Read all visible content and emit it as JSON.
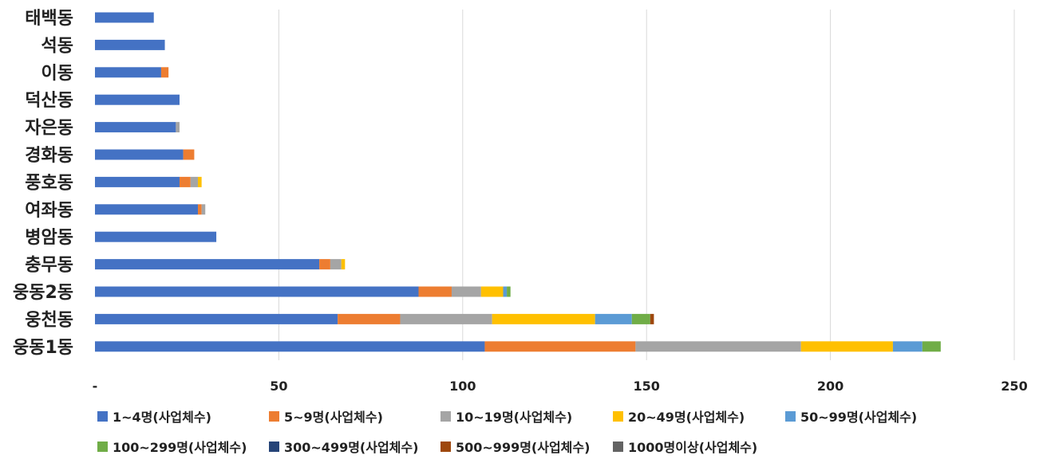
{
  "chart_data": {
    "type": "bar",
    "orientation": "horizontal",
    "stacked": true,
    "categories": [
      "태백동",
      "석동",
      "이동",
      "덕산동",
      "자은동",
      "경화동",
      "풍호동",
      "여좌동",
      "병암동",
      "충무동",
      "웅동2동",
      "웅천동",
      "웅동1동"
    ],
    "series": [
      {
        "name": "1~4명(사업체수)",
        "color": "#4472C4",
        "values": [
          16,
          19,
          18,
          23,
          22,
          24,
          23,
          28,
          33,
          61,
          88,
          66,
          106
        ]
      },
      {
        "name": "5~9명(사업체수)",
        "color": "#ED7D31",
        "values": [
          0,
          0,
          2,
          0,
          0,
          3,
          3,
          1,
          0,
          3,
          9,
          17,
          41
        ]
      },
      {
        "name": "10~19명(사업체수)",
        "color": "#A5A5A5",
        "values": [
          0,
          0,
          0,
          0,
          1,
          0,
          2,
          1,
          0,
          3,
          8,
          25,
          45
        ]
      },
      {
        "name": "20~49명(사업체수)",
        "color": "#FFC000",
        "values": [
          0,
          0,
          0,
          0,
          0,
          0,
          1,
          0,
          0,
          1,
          6,
          28,
          25
        ]
      },
      {
        "name": "50~99명(사업체수)",
        "color": "#5B9BD5",
        "values": [
          0,
          0,
          0,
          0,
          0,
          0,
          0,
          0,
          0,
          0,
          1,
          10,
          8
        ]
      },
      {
        "name": "100~299명(사업체수)",
        "color": "#70AD47",
        "values": [
          0,
          0,
          0,
          0,
          0,
          0,
          0,
          0,
          0,
          0,
          1,
          5,
          5
        ]
      },
      {
        "name": "300~499명(사업체수)",
        "color": "#264478",
        "values": [
          0,
          0,
          0,
          0,
          0,
          0,
          0,
          0,
          0,
          0,
          0,
          0,
          0
        ]
      },
      {
        "name": "500~999명(사업체수)",
        "color": "#9E480E",
        "values": [
          0,
          0,
          0,
          0,
          0,
          0,
          0,
          0,
          0,
          0,
          0,
          1,
          0
        ]
      },
      {
        "name": "1000명이상(사업체수)",
        "color": "#636363",
        "values": [
          0,
          0,
          0,
          0,
          0,
          0,
          0,
          0,
          0,
          0,
          0,
          0,
          0
        ]
      }
    ],
    "xlim": [
      0,
      250
    ],
    "xticks": [
      0,
      50,
      100,
      150,
      200,
      250
    ],
    "xtick_labels": [
      "-",
      "50",
      "100",
      "150",
      "200",
      "250"
    ],
    "grid": "vertical",
    "legend_position": "bottom",
    "title": "",
    "xlabel": "",
    "ylabel": ""
  }
}
